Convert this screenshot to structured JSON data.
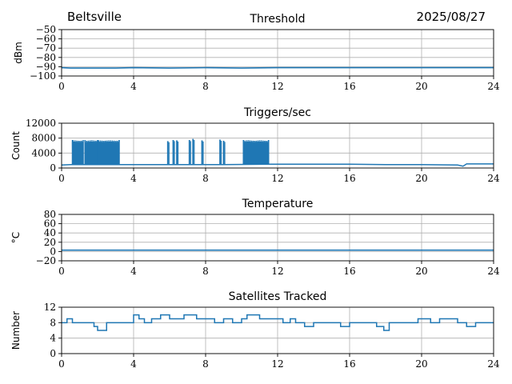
{
  "header": {
    "station": "Beltsville",
    "date": "2025/08/27"
  },
  "colors": {
    "series": "#1f77b4",
    "grid": "#b0b0b0",
    "axes": "#000000"
  },
  "chart_data": [
    {
      "type": "line",
      "title": "Threshold",
      "ylabel": "dBm",
      "xlim": [
        0,
        24
      ],
      "ylim": [
        -100,
        -50
      ],
      "xticks": [
        0,
        4,
        8,
        12,
        16,
        20,
        24
      ],
      "yticks": [
        -100,
        -90,
        -80,
        -70,
        -60,
        -50
      ],
      "grid": true,
      "series": [
        {
          "x": [
            0,
            0.5,
            1,
            2,
            3,
            4,
            6,
            8,
            10,
            12,
            14,
            16,
            18,
            20,
            22,
            24
          ],
          "y": [
            -91,
            -91.5,
            -91.5,
            -91.5,
            -91.5,
            -91,
            -91.5,
            -91,
            -91.5,
            -91,
            -91,
            -91,
            -91,
            -91,
            -91,
            -91
          ]
        }
      ]
    },
    {
      "type": "line",
      "title": "Triggers/sec",
      "ylabel": "Count",
      "xlim": [
        0,
        24
      ],
      "ylim": [
        0,
        12000
      ],
      "xticks": [
        0,
        4,
        8,
        12,
        16,
        20,
        24
      ],
      "yticks": [
        0,
        4000,
        8000,
        12000
      ],
      "grid": true,
      "series": [
        {
          "baseline": [
            [
              0,
              800
            ],
            [
              0.5,
              900
            ],
            [
              3.5,
              900
            ],
            [
              6,
              900
            ],
            [
              9,
              900
            ],
            [
              11.5,
              1000
            ],
            [
              14,
              1000
            ],
            [
              16,
              1000
            ],
            [
              18,
              900
            ],
            [
              20,
              900
            ],
            [
              22,
              800
            ],
            [
              22.3,
              500
            ],
            [
              22.5,
              1100
            ],
            [
              24,
              1100
            ]
          ],
          "bursts": [
            [
              0.6,
              1.2
            ],
            [
              1.3,
              2.0
            ],
            [
              2.0,
              3.2
            ],
            [
              10.1,
              11.5
            ]
          ],
          "burst_peak": 7500,
          "spikes": [
            [
              5.9,
              7200
            ],
            [
              6.2,
              7500
            ],
            [
              6.4,
              7400
            ],
            [
              7.1,
              7500
            ],
            [
              7.3,
              7800
            ],
            [
              7.8,
              7400
            ],
            [
              8.8,
              7600
            ],
            [
              9.0,
              7300
            ]
          ]
        }
      ]
    },
    {
      "type": "line",
      "title": "Temperature",
      "ylabel": "°C",
      "xlim": [
        0,
        24
      ],
      "ylim": [
        -20,
        80
      ],
      "xticks": [
        0,
        4,
        8,
        12,
        16,
        20,
        24
      ],
      "yticks": [
        -20,
        0,
        20,
        40,
        60,
        80
      ],
      "grid": true,
      "series": [
        {
          "x": [
            0,
            24
          ],
          "y": [
            3,
            3
          ]
        }
      ]
    },
    {
      "type": "line",
      "title": "Satellites Tracked",
      "ylabel": "Number",
      "xlim": [
        0,
        24
      ],
      "ylim": [
        0,
        12
      ],
      "xticks": [
        0,
        4,
        8,
        12,
        16,
        20,
        24
      ],
      "yticks": [
        0,
        4,
        8,
        12
      ],
      "grid": true,
      "series": [
        {
          "step_x": [
            0,
            0.3,
            0.6,
            1.0,
            1.8,
            2.0,
            2.5,
            3.0,
            3.7,
            4.0,
            4.3,
            4.6,
            5.0,
            5.5,
            6.0,
            6.8,
            7.5,
            8.0,
            8.5,
            9.0,
            9.5,
            10.0,
            10.3,
            11.0,
            11.8,
            12.3,
            12.7,
            13.0,
            13.5,
            14.0,
            14.8,
            15.5,
            16.0,
            16.8,
            17.5,
            17.9,
            18.2,
            18.5,
            19.0,
            19.8,
            20.5,
            21.0,
            21.5,
            22.0,
            22.5,
            23.0,
            23.5,
            24
          ],
          "step_y": [
            8,
            9,
            8,
            8,
            7,
            6,
            8,
            8,
            8,
            10,
            9,
            8,
            9,
            10,
            9,
            10,
            9,
            9,
            8,
            9,
            8,
            9,
            10,
            9,
            9,
            8,
            9,
            8,
            7,
            8,
            8,
            7,
            8,
            8,
            7,
            6,
            8,
            8,
            8,
            9,
            8,
            9,
            9,
            8,
            7,
            8,
            8,
            8
          ]
        }
      ]
    }
  ]
}
